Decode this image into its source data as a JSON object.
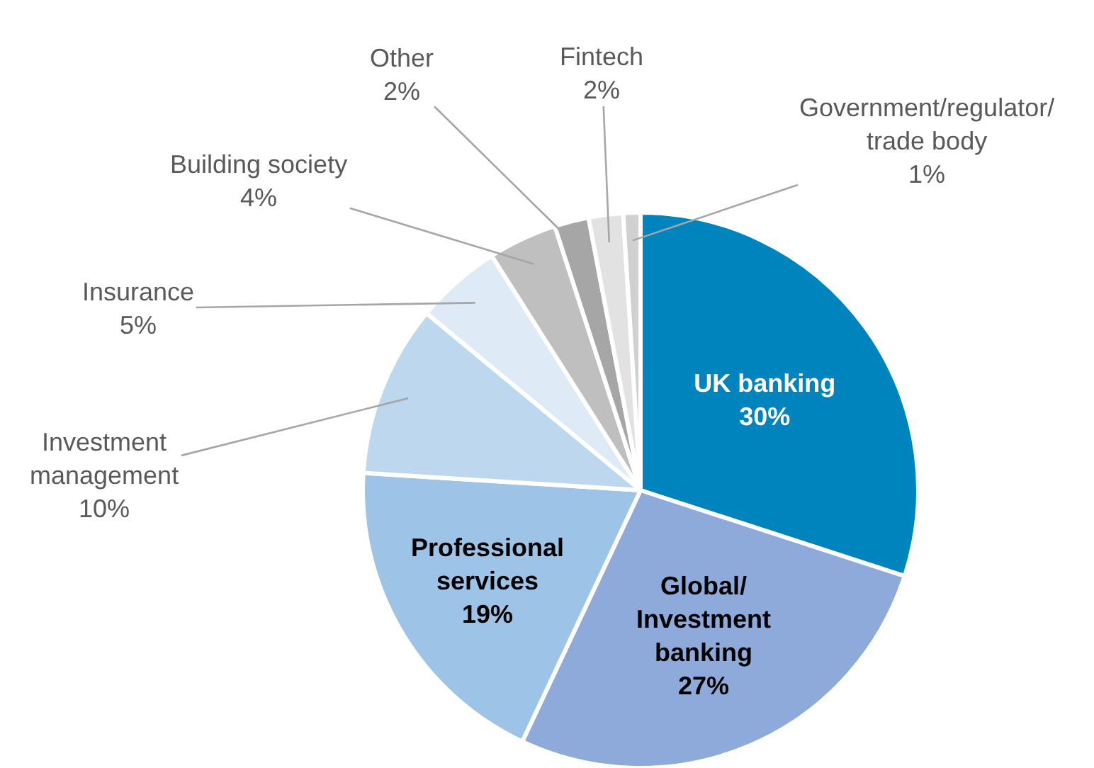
{
  "chart_data": {
    "type": "pie",
    "categories": [
      "UK banking",
      "Global/ Investment banking",
      "Professional services",
      "Investment management",
      "Insurance",
      "Building society",
      "Other",
      "Fintech",
      "Government/regulator/ trade body"
    ],
    "values": [
      30,
      27,
      19,
      10,
      5,
      4,
      2,
      2,
      1
    ],
    "value_labels": [
      "30%",
      "27%",
      "19%",
      "10%",
      "5%",
      "4%",
      "2%",
      "2%",
      "1%"
    ],
    "colors": [
      "#0084bd",
      "#8eaadb",
      "#9dc3e6",
      "#bdd7ee",
      "#deebf7",
      "#bfbfbf",
      "#a6a6a6",
      "#e2e2e2",
      "#d0d0d0"
    ]
  }
}
